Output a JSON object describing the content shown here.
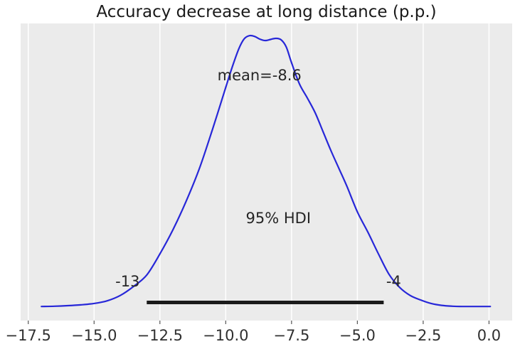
{
  "title": "Accuracy decrease at long distance (p.p.)",
  "colors": {
    "figure_bg": "#ffffff",
    "plot_bg": "#ebebeb",
    "grid": "#ffffff",
    "curve": "#2727d8",
    "hdi_bar": "#1a1a1a",
    "tick_mark": "#555555",
    "text": "#262626"
  },
  "chart_data": {
    "type": "kde",
    "title": "Accuracy decrease at long distance (p.p.)",
    "xlabel": "",
    "ylabel": "",
    "xlim": [
      -17.79,
      0.88
    ],
    "ylim_density": [
      -0.051,
      1.045
    ],
    "x_ticks": [
      -17.5,
      -15.0,
      -12.5,
      -10.0,
      -7.5,
      -5.0,
      -2.5,
      0.0
    ],
    "x_tick_labels": [
      "−17.5",
      "−15.0",
      "−12.5",
      "−10.0",
      "−7.5",
      "−5.0",
      "−2.5",
      "0.0"
    ],
    "grid": "vertical-white-lines",
    "legend": false,
    "curve": {
      "x": [
        -17.0,
        -16.5,
        -16.0,
        -15.5,
        -15.0,
        -14.5,
        -14.0,
        -13.5,
        -13.0,
        -12.5,
        -12.0,
        -11.5,
        -11.0,
        -10.5,
        -10.0,
        -9.75,
        -9.5,
        -9.3,
        -9.1,
        -8.9,
        -8.7,
        -8.5,
        -8.3,
        -8.1,
        -7.9,
        -7.7,
        -7.5,
        -7.2,
        -6.9,
        -6.6,
        -6.3,
        -6.0,
        -5.7,
        -5.4,
        -5.0,
        -4.6,
        -4.2,
        -3.8,
        -3.4,
        -3.0,
        -2.6,
        -2.2,
        -1.8,
        -1.4,
        -1.0,
        -0.5,
        0.05
      ],
      "density": [
        0.001,
        0.002,
        0.004,
        0.007,
        0.012,
        0.022,
        0.042,
        0.075,
        0.117,
        0.195,
        0.285,
        0.39,
        0.51,
        0.655,
        0.809,
        0.885,
        0.952,
        0.988,
        1.0,
        0.997,
        0.987,
        0.982,
        0.986,
        0.99,
        0.985,
        0.958,
        0.9,
        0.822,
        0.77,
        0.715,
        0.645,
        0.575,
        0.51,
        0.445,
        0.35,
        0.275,
        0.195,
        0.12,
        0.072,
        0.042,
        0.025,
        0.012,
        0.005,
        0.002,
        0.001,
        0.001,
        0.001
      ]
    },
    "hdi": {
      "lower": -13,
      "upper": -4,
      "probability": "95%",
      "bar_density_y": 0.016
    },
    "annotations": {
      "mean": {
        "value": -8.6,
        "label": "mean=-8.6",
        "x": -8.72,
        "d": 0.853
      },
      "hdi_label": {
        "label": "95% HDI",
        "x": -8.0,
        "d": 0.326
      },
      "hdi_lower": {
        "value": -13,
        "label": "-13",
        "x": -13.73,
        "d": 0.093
      },
      "hdi_upper": {
        "value": -4,
        "label": "-4",
        "x": -3.62,
        "d": 0.093
      }
    }
  }
}
